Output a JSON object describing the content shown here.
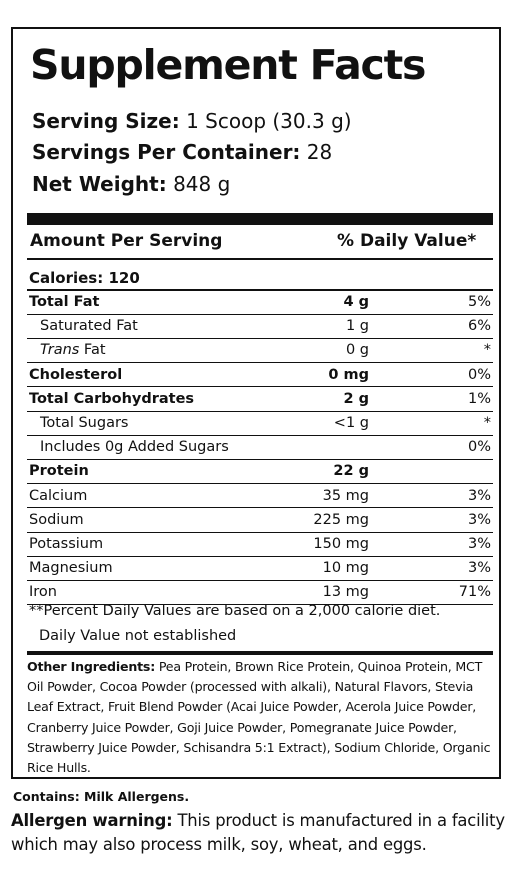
{
  "panel": {
    "title": "Supplement Facts",
    "serving_size_label": "Serving Size:",
    "serving_size_value": " 1 Scoop (30.3 g)",
    "servings_label": "Servings Per Container:",
    "servings_value": " 28",
    "net_weight_label": "Net Weight:",
    "net_weight_value": " 848 g",
    "amount_header": "Amount Per Serving",
    "dv_header": "% Daily Value*",
    "calories": "Calories: 120"
  },
  "rows": [
    {
      "name": "Total Fat",
      "amount": "4 g",
      "dv": "5%",
      "bold": true,
      "indent": false
    },
    {
      "name": "Saturated Fat",
      "amount": "1 g",
      "dv": "6%",
      "bold": false,
      "indent": true
    },
    {
      "name_italic": "Trans",
      "name": " Fat",
      "amount": "0 g",
      "dv": "*",
      "bold": false,
      "indent": true
    },
    {
      "name": "Cholesterol",
      "amount": "0 mg",
      "dv": "0%",
      "bold": true,
      "indent": false
    },
    {
      "name": "Total Carbohydrates",
      "amount": "2 g",
      "dv": "1%",
      "bold": true,
      "indent": false
    },
    {
      "name": "Total Sugars",
      "amount": "<1 g",
      "dv": "*",
      "bold": false,
      "indent": true
    },
    {
      "name": "Includes 0g Added Sugars",
      "amount": "",
      "dv": "0%",
      "bold": false,
      "indent": true
    },
    {
      "name": "Protein",
      "amount": "22 g",
      "dv": "",
      "bold": true,
      "indent": false
    },
    {
      "name": "Calcium",
      "amount": "35 mg",
      "dv": "3%",
      "bold": false,
      "indent": false
    },
    {
      "name": "Sodium",
      "amount": "225 mg",
      "dv": "3%",
      "bold": false,
      "indent": false
    },
    {
      "name": "Potassium",
      "amount": "150 mg",
      "dv": "3%",
      "bold": false,
      "indent": false
    },
    {
      "name": "Magnesium",
      "amount": "10 mg",
      "dv": "3%",
      "bold": false,
      "indent": false
    },
    {
      "name": "Iron",
      "amount": "13 mg",
      "dv": "71%",
      "bold": false,
      "indent": false
    }
  ],
  "footnotes": {
    "percent_note": "**Percent Daily Values are based on a 2,000 calorie diet.",
    "dv_note": "Daily Value not established"
  },
  "ingredients": {
    "label": "Other Ingredients:",
    "text": " Pea Protein, Brown Rice Protein, Quinoa Protein, MCT Oil Powder, Cocoa Powder (processed with alkali), Natural Flavors, Stevia Leaf Extract, Fruit Blend Powder (Acai Juice Powder, Acerola Juice Powder, Cranberry Juice Powder, Goji Juice Powder, Pomegranate Juice Powder, Strawberry Juice Powder, Schisandra 5:1 Extract), Sodium Chloride, Organic Rice Hulls."
  },
  "contains": "Contains: Milk Allergens.",
  "allergen": {
    "label": "Allergen warning:",
    "text": " This product is manufactured in a facility which may also process milk, soy, wheat, and eggs."
  }
}
